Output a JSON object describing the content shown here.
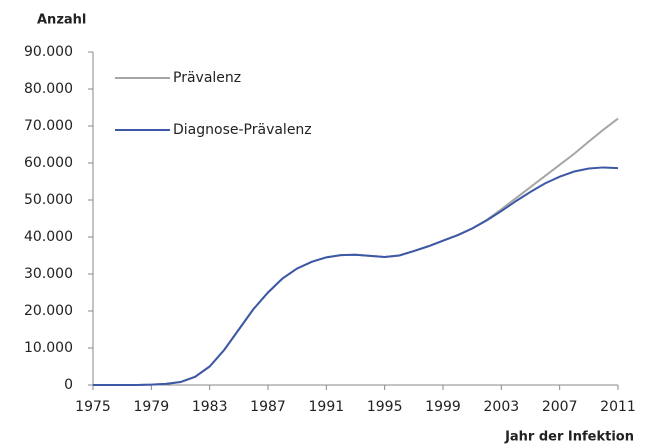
{
  "chart_data": {
    "type": "line",
    "y_label": "Anzahl",
    "x_label": "Jahr der Infektion",
    "x": [
      1975,
      1976,
      1977,
      1978,
      1979,
      1980,
      1981,
      1982,
      1983,
      1984,
      1985,
      1986,
      1987,
      1988,
      1989,
      1990,
      1991,
      1992,
      1993,
      1994,
      1995,
      1996,
      1997,
      1998,
      1999,
      2000,
      2001,
      2002,
      2003,
      2004,
      2005,
      2006,
      2007,
      2008,
      2009,
      2010,
      2011
    ],
    "series": [
      {
        "name": "Prävalenz",
        "color": "#a6a6a6",
        "values": [
          0,
          0,
          0,
          0,
          100,
          300,
          800,
          2200,
          5000,
          9500,
          15000,
          20500,
          25000,
          28800,
          31500,
          33300,
          34500,
          35100,
          35200,
          34900,
          34600,
          35000,
          36200,
          37500,
          39000,
          40500,
          42300,
          44600,
          47500,
          50500,
          53500,
          56500,
          59500,
          62500,
          65800,
          69000,
          72000
        ]
      },
      {
        "name": "Diagnose-Prävalenz",
        "color": "#3d58a6",
        "values": [
          0,
          0,
          0,
          0,
          100,
          300,
          800,
          2200,
          5000,
          9500,
          15000,
          20500,
          25000,
          28800,
          31500,
          33300,
          34500,
          35100,
          35200,
          34900,
          34600,
          35000,
          36200,
          37500,
          39000,
          40500,
          42300,
          44500,
          47000,
          49700,
          52200,
          54500,
          56300,
          57700,
          58500,
          58800,
          58600
        ]
      }
    ],
    "xlim": [
      1975,
      2011
    ],
    "xticks": [
      1975,
      1979,
      1983,
      1987,
      1991,
      1995,
      1999,
      2003,
      2007,
      2011
    ],
    "ylim": [
      0,
      90000
    ],
    "yticks": [
      0,
      {
        "value": 10000,
        "label": "10.000"
      },
      {
        "value": 20000,
        "label": "20.000"
      },
      {
        "value": 30000,
        "label": "30.000"
      },
      {
        "value": 40000,
        "label": "40.000"
      },
      {
        "value": 50000,
        "label": "50.000"
      },
      {
        "value": 60000,
        "label": "60.000"
      },
      {
        "value": 70000,
        "label": "70.000"
      },
      {
        "value": 80000,
        "label": "80.000"
      },
      {
        "value": 90000,
        "label": "90.000"
      }
    ],
    "legend": "top-left",
    "grid": false
  }
}
